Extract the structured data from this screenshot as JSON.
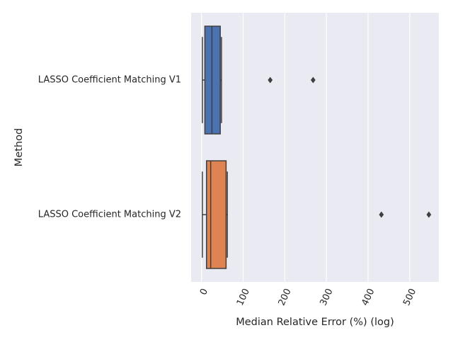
{
  "chart_data": {
    "type": "box",
    "orientation": "horizontal",
    "xlabel": "Median Relative Error (%) (log)",
    "ylabel": "Method",
    "xlim": [
      -25,
      570
    ],
    "xticks": [
      0,
      100,
      200,
      300,
      400,
      500
    ],
    "xtick_labels": [
      "0",
      "100",
      "200",
      "300",
      "400",
      "500"
    ],
    "grid": true,
    "categories": [
      "LASSO Coefficient Matching V1",
      "LASSO Coefficient Matching V2"
    ],
    "boxes": [
      {
        "category": "LASSO Coefficient Matching V1",
        "whisker_low": 2,
        "q1": 8,
        "median": 25,
        "q3": 45,
        "whisker_high": 48,
        "outliers": [
          165,
          268
        ],
        "color": "#4c72b0"
      },
      {
        "category": "LASSO Coefficient Matching V2",
        "whisker_low": 2,
        "q1": 12,
        "median": 22,
        "q3": 59,
        "whisker_high": 62,
        "outliers": [
          432,
          546
        ],
        "color": "#dd8452"
      }
    ]
  }
}
